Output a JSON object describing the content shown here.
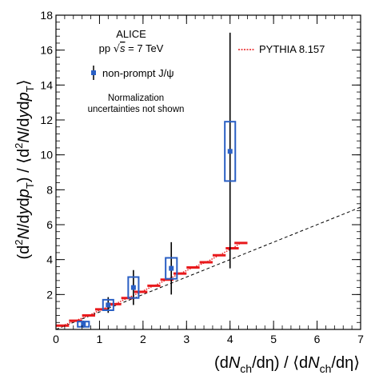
{
  "chart_data": {
    "type": "scatter",
    "xlim": [
      0,
      7
    ],
    "ylim": [
      0,
      18
    ],
    "x_ticks": [
      0,
      1,
      2,
      3,
      4,
      5,
      6,
      7
    ],
    "y_ticks": [
      2,
      4,
      6,
      8,
      10,
      12,
      14,
      16,
      18
    ],
    "xlabel": "(dN_ch/dη) / ⟨dN_ch/dη⟩",
    "ylabel": "(d²N/dydp_T) / ⟨d²N/dydp_T⟩",
    "experiment": "ALICE",
    "system": "pp √s = 7 TeV",
    "note": [
      "Normalization",
      "uncertainties not shown"
    ],
    "grid": false,
    "legend_position": "top",
    "series": [
      {
        "name": "non-prompt J/ψ",
        "color": "#2a5fc4",
        "x": [
          0.63,
          1.2,
          1.78,
          2.65,
          4.0
        ],
        "y": [
          0.3,
          1.4,
          2.4,
          3.5,
          10.2
        ],
        "x_err": [
          0.13,
          0.12,
          0.12,
          0.13,
          0.12
        ],
        "stat_err_low": [
          0.2,
          0.45,
          1.0,
          1.5,
          6.7
        ],
        "stat_err_high": [
          0.2,
          0.45,
          1.0,
          1.5,
          6.8
        ],
        "sys_err": [
          0.15,
          0.3,
          0.6,
          0.6,
          1.7
        ]
      },
      {
        "name": "PYTHIA 8.157",
        "color": "#e8191c",
        "x": [
          0.15,
          0.45,
          0.75,
          1.05,
          1.35,
          1.65,
          1.95,
          2.25,
          2.55,
          2.85,
          3.15,
          3.45,
          3.75,
          4.05,
          4.25
        ],
        "y": [
          0.22,
          0.5,
          0.8,
          1.15,
          1.45,
          1.8,
          2.15,
          2.5,
          2.85,
          3.2,
          3.55,
          3.85,
          4.25,
          4.65,
          4.95
        ],
        "bin_edges": [
          [
            0.0,
            0.3
          ],
          [
            0.3,
            0.6
          ],
          [
            0.6,
            0.9
          ],
          [
            0.9,
            1.2
          ],
          [
            1.2,
            1.5
          ],
          [
            1.5,
            1.8
          ],
          [
            1.8,
            2.1
          ],
          [
            2.1,
            2.4
          ],
          [
            2.4,
            2.7
          ],
          [
            2.7,
            3.0
          ],
          [
            3.0,
            3.3
          ],
          [
            3.3,
            3.6
          ],
          [
            3.6,
            3.9
          ],
          [
            3.9,
            4.2
          ],
          [
            4.1,
            4.4
          ]
        ]
      },
      {
        "name": "",
        "color": "#000000",
        "x": [
          0,
          7
        ],
        "y": [
          0,
          7
        ]
      }
    ]
  }
}
